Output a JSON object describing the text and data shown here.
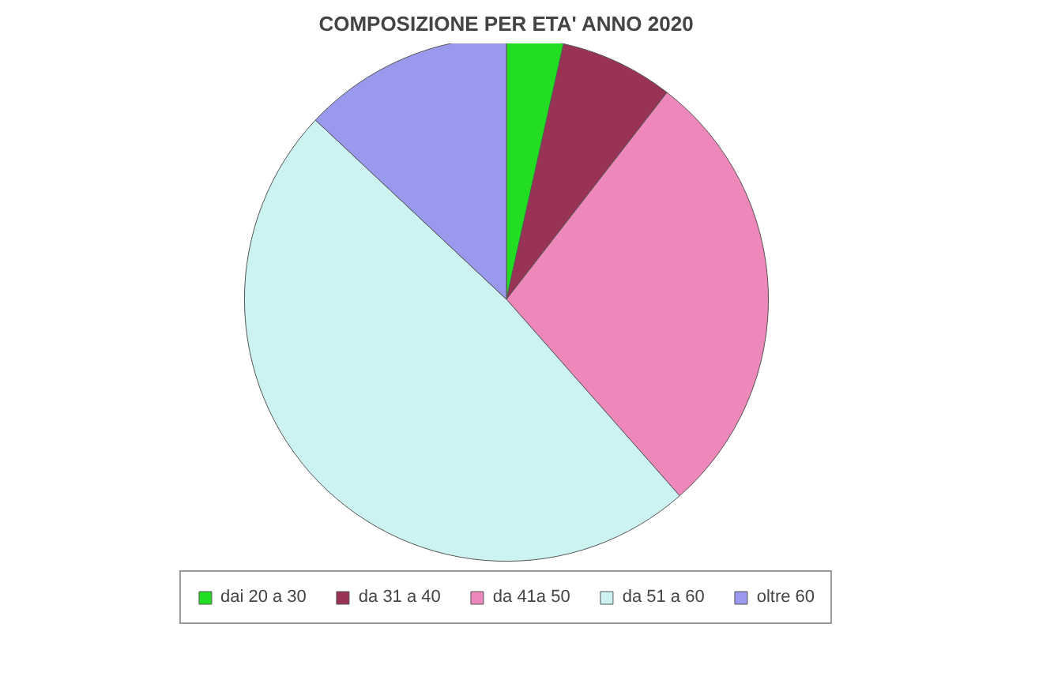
{
  "chart_data": {
    "type": "pie",
    "title": "COMPOSIZIONE PER ETA' ANNO 2020",
    "categories": [
      "dai 20 a 30",
      "da 31 a 40",
      "da 41a 50",
      "da 51 a 60",
      "oltre 60"
    ],
    "values": [
      3.5,
      7,
      28,
      48.5,
      13
    ],
    "colors": [
      "#22dd22",
      "#993355",
      "#ee88bb",
      "#ccf2f2",
      "#9999ee"
    ],
    "legend": "bottom"
  }
}
